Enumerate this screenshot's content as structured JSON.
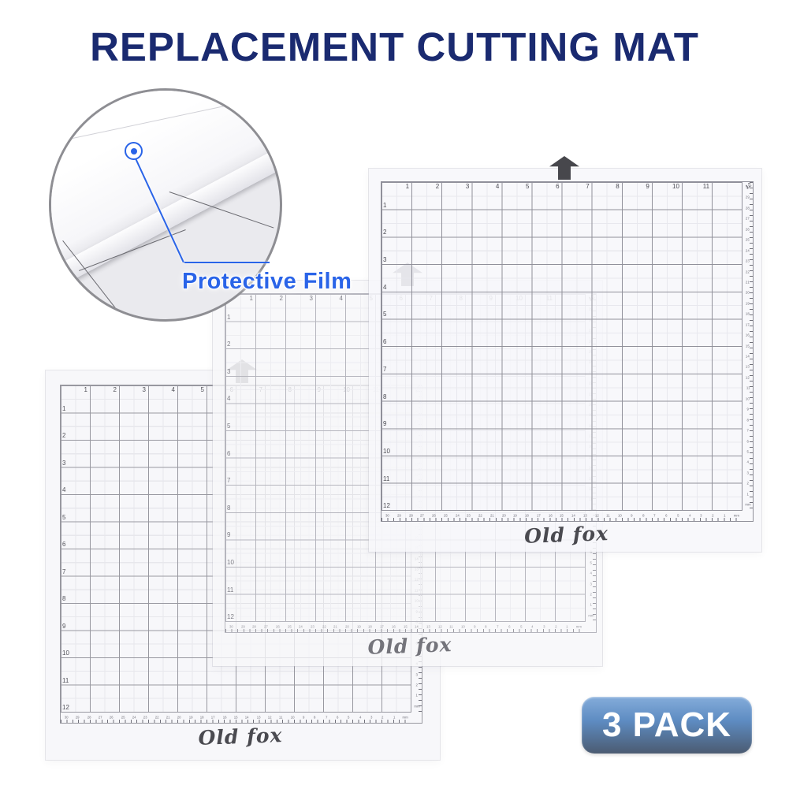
{
  "title": {
    "text": "REPLACEMENT CUTTING MAT",
    "color": "#1a2a70"
  },
  "callout": {
    "label": "Protective Film",
    "accent_color": "#2a64e8"
  },
  "badge": {
    "label": "3 PACK",
    "gradient_top": "#84acda",
    "gradient_bottom": "#4b5b71",
    "text_color": "#ffffff"
  },
  "brand_label": "Old fox",
  "mat": {
    "column_labels": [
      "1",
      "2",
      "3",
      "4",
      "5",
      "6",
      "7",
      "8",
      "9",
      "10",
      "11"
    ],
    "corner_label": "12",
    "row_labels": [
      "1",
      "2",
      "3",
      "4",
      "5",
      "6",
      "7",
      "8",
      "9",
      "10",
      "11",
      "12"
    ],
    "ruler_values": [
      "30",
      "29",
      "28",
      "27",
      "26",
      "25",
      "24",
      "23",
      "22",
      "21",
      "20",
      "19",
      "18",
      "17",
      "16",
      "15",
      "14",
      "13",
      "12",
      "11",
      "10",
      "9",
      "8",
      "7",
      "6",
      "5",
      "4",
      "3",
      "2",
      "1"
    ],
    "ruler_unit": "mm"
  }
}
